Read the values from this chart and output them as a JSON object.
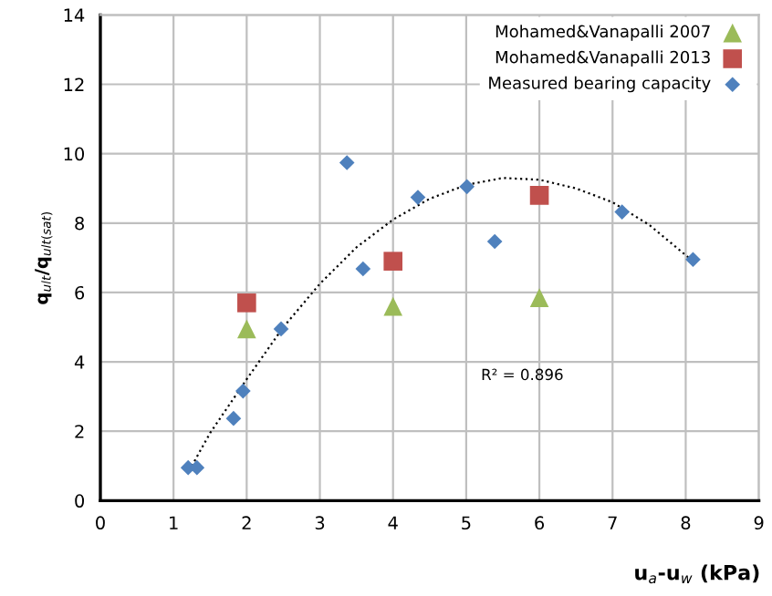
{
  "chart_data": {
    "type": "scatter",
    "xlabel": "u$_{a}$-u$_{w}$ (kPa)",
    "ylabel": "q$_{ult}$/q$_{ult(sat)}$",
    "xlim": [
      0,
      9
    ],
    "xticks": [
      0,
      1,
      2,
      3,
      4,
      5,
      6,
      7,
      8,
      9
    ],
    "ylim": [
      0,
      14
    ],
    "yticks": [
      0,
      2,
      4,
      6,
      8,
      10,
      12,
      14
    ],
    "grid": true,
    "legend": "top right",
    "annotations": [
      "R² = 0.896"
    ],
    "series": [
      {
        "name": "Mohamed&Vanapalli 2007",
        "color": "#9bbb59",
        "marker": "triangle",
        "x": [
          2,
          4,
          6
        ],
        "values": [
          4.95,
          5.6,
          5.85
        ]
      },
      {
        "name": "Mohamed&Vanapalli 2013",
        "color": "#c0504d",
        "marker": "square",
        "x": [
          2,
          4,
          6
        ],
        "values": [
          5.7,
          6.9,
          8.8
        ]
      },
      {
        "name": "Measured bearing capacity",
        "color": "#4f81bd",
        "marker": "diamond",
        "x": [
          1.2,
          1.32,
          1.82,
          1.95,
          2.47,
          3.37,
          3.59,
          4.34,
          5.01,
          5.39,
          7.13,
          8.1
        ],
        "values": [
          0.95,
          0.95,
          2.37,
          3.16,
          4.95,
          9.74,
          6.68,
          8.74,
          9.05,
          7.47,
          8.32,
          6.95
        ]
      },
      {
        "type": "line",
        "color": "#000000",
        "line_style": "dotted",
        "marker": "none",
        "x": [
          1.25,
          1.5,
          2,
          2.5,
          3,
          3.5,
          4,
          4.5,
          5,
          5.5,
          6,
          6.5,
          7,
          7.5,
          8.1
        ],
        "values": [
          1.0,
          1.95,
          3.5,
          5.0,
          6.25,
          7.3,
          8.1,
          8.7,
          9.1,
          9.3,
          9.25,
          9.0,
          8.6,
          7.95,
          6.9
        ]
      }
    ]
  }
}
